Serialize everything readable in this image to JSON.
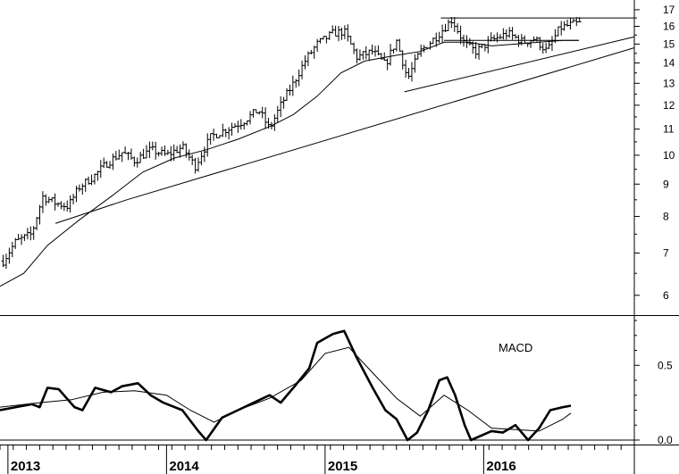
{
  "chart_data": [
    {
      "type": "ohlc",
      "panel": "price",
      "y_scale": "log",
      "ylim": [
        5.6,
        17.5
      ],
      "y_ticks": [
        "6",
        "7",
        "8",
        "9",
        "10",
        "11",
        "12",
        "13",
        "14",
        "15",
        "16",
        "17"
      ],
      "x_range": [
        2012.95,
        2016.95
      ],
      "x_ticks": [
        {
          "x": 2013,
          "label": "2013"
        },
        {
          "x": 2014,
          "label": "2014"
        },
        {
          "x": 2015,
          "label": "2015"
        },
        {
          "x": 2016,
          "label": "2016"
        }
      ],
      "price_path": [
        [
          2012.97,
          6.8
        ],
        [
          2013.05,
          7.3
        ],
        [
          2013.15,
          7.5
        ],
        [
          2013.22,
          8.6
        ],
        [
          2013.3,
          8.4
        ],
        [
          2013.38,
          8.3
        ],
        [
          2013.45,
          8.9
        ],
        [
          2013.55,
          9.3
        ],
        [
          2013.62,
          9.7
        ],
        [
          2013.72,
          10.1
        ],
        [
          2013.8,
          9.8
        ],
        [
          2013.9,
          10.2
        ],
        [
          2014.0,
          10.0
        ],
        [
          2014.1,
          10.3
        ],
        [
          2014.18,
          9.6
        ],
        [
          2014.28,
          10.7
        ],
        [
          2014.38,
          11.0
        ],
        [
          2014.48,
          11.3
        ],
        [
          2014.58,
          11.8
        ],
        [
          2014.65,
          11.0
        ],
        [
          2014.72,
          12.0
        ],
        [
          2014.8,
          13.0
        ],
        [
          2014.88,
          14.2
        ],
        [
          2014.95,
          15.0
        ],
        [
          2015.05,
          15.6
        ],
        [
          2015.12,
          15.7
        ],
        [
          2015.2,
          14.3
        ],
        [
          2015.3,
          14.6
        ],
        [
          2015.38,
          13.9
        ],
        [
          2015.45,
          15.2
        ],
        [
          2015.52,
          13.2
        ],
        [
          2015.6,
          14.6
        ],
        [
          2015.7,
          15.4
        ],
        [
          2015.8,
          16.4
        ],
        [
          2015.88,
          15.0
        ],
        [
          2015.95,
          14.6
        ],
        [
          2016.05,
          15.2
        ],
        [
          2016.15,
          15.6
        ],
        [
          2016.25,
          15.1
        ],
        [
          2016.32,
          15.3
        ],
        [
          2016.4,
          14.6
        ],
        [
          2016.48,
          15.9
        ],
        [
          2016.55,
          16.1
        ],
        [
          2016.62,
          16.2
        ]
      ],
      "moving_average": [
        [
          2012.95,
          6.2
        ],
        [
          2013.1,
          6.5
        ],
        [
          2013.25,
          7.2
        ],
        [
          2013.45,
          7.9
        ],
        [
          2013.65,
          8.6
        ],
        [
          2013.85,
          9.4
        ],
        [
          2014.05,
          9.9
        ],
        [
          2014.25,
          10.2
        ],
        [
          2014.45,
          10.6
        ],
        [
          2014.65,
          11.1
        ],
        [
          2014.8,
          11.6
        ],
        [
          2014.95,
          12.4
        ],
        [
          2015.1,
          13.5
        ],
        [
          2015.25,
          14.1
        ],
        [
          2015.45,
          14.4
        ],
        [
          2015.6,
          14.6
        ],
        [
          2015.75,
          15.1
        ],
        [
          2015.9,
          15.1
        ],
        [
          2016.05,
          14.9
        ],
        [
          2016.2,
          15.0
        ],
        [
          2016.35,
          15.1
        ],
        [
          2016.5,
          15.2
        ],
        [
          2016.6,
          15.2
        ]
      ],
      "trendlines": [
        {
          "from": [
            2013.3,
            7.8
          ],
          "to": [
            2013.75,
            8.5
          ]
        },
        {
          "from": [
            2013.75,
            8.5
          ],
          "to": [
            2016.95,
            14.8
          ]
        },
        {
          "from": [
            2015.5,
            12.6
          ],
          "to": [
            2016.95,
            15.4
          ]
        },
        {
          "from": [
            2015.73,
            16.5
          ],
          "to": [
            2016.95,
            16.5
          ]
        },
        {
          "from": [
            2015.75,
            15.2
          ],
          "to": [
            2016.6,
            15.2
          ]
        }
      ]
    },
    {
      "type": "line",
      "panel": "indicator",
      "title": "MACD",
      "ylim": [
        -0.03,
        0.83
      ],
      "y_ticks": [
        {
          "y": 0.0,
          "label": "0.0"
        },
        {
          "y": 0.5,
          "label": "0.5"
        }
      ],
      "zero_line": 0,
      "series": [
        {
          "values": [
            [
              2012.95,
              0.2
            ],
            [
              2013.05,
              0.22
            ],
            [
              2013.15,
              0.24
            ],
            [
              2013.2,
              0.22
            ],
            [
              2013.25,
              0.35
            ],
            [
              2013.32,
              0.34
            ],
            [
              2013.42,
              0.22
            ],
            [
              2013.47,
              0.2
            ],
            [
              2013.55,
              0.35
            ],
            [
              2013.65,
              0.32
            ],
            [
              2013.72,
              0.36
            ],
            [
              2013.82,
              0.38
            ],
            [
              2013.9,
              0.3
            ],
            [
              2013.98,
              0.25
            ],
            [
              2014.1,
              0.2
            ],
            [
              2014.2,
              0.06
            ],
            [
              2014.25,
              0.0
            ],
            [
              2014.35,
              0.15
            ],
            [
              2014.45,
              0.2
            ],
            [
              2014.55,
              0.25
            ],
            [
              2014.65,
              0.3
            ],
            [
              2014.72,
              0.25
            ],
            [
              2014.8,
              0.35
            ],
            [
              2014.9,
              0.48
            ],
            [
              2014.95,
              0.65
            ],
            [
              2015.05,
              0.71
            ],
            [
              2015.12,
              0.73
            ],
            [
              2015.2,
              0.55
            ],
            [
              2015.3,
              0.35
            ],
            [
              2015.38,
              0.2
            ],
            [
              2015.45,
              0.14
            ],
            [
              2015.52,
              0.0
            ],
            [
              2015.58,
              0.05
            ],
            [
              2015.65,
              0.2
            ],
            [
              2015.72,
              0.4
            ],
            [
              2015.77,
              0.42
            ],
            [
              2015.82,
              0.3
            ],
            [
              2015.88,
              0.1
            ],
            [
              2015.92,
              0.0
            ],
            [
              2016.05,
              0.06
            ],
            [
              2016.12,
              0.05
            ],
            [
              2016.2,
              0.1
            ],
            [
              2016.28,
              0.0
            ],
            [
              2016.35,
              0.08
            ],
            [
              2016.42,
              0.2
            ],
            [
              2016.5,
              0.22
            ],
            [
              2016.55,
              0.23
            ]
          ]
        },
        {
          "values": [
            [
              2012.95,
              0.22
            ],
            [
              2013.2,
              0.25
            ],
            [
              2013.4,
              0.27
            ],
            [
              2013.6,
              0.32
            ],
            [
              2013.8,
              0.33
            ],
            [
              2014.0,
              0.3
            ],
            [
              2014.15,
              0.2
            ],
            [
              2014.3,
              0.12
            ],
            [
              2014.45,
              0.2
            ],
            [
              2014.65,
              0.28
            ],
            [
              2014.85,
              0.4
            ],
            [
              2015.0,
              0.58
            ],
            [
              2015.15,
              0.62
            ],
            [
              2015.3,
              0.45
            ],
            [
              2015.45,
              0.28
            ],
            [
              2015.6,
              0.16
            ],
            [
              2015.75,
              0.3
            ],
            [
              2015.9,
              0.2
            ],
            [
              2016.05,
              0.08
            ],
            [
              2016.2,
              0.07
            ],
            [
              2016.35,
              0.06
            ],
            [
              2016.5,
              0.14
            ],
            [
              2016.55,
              0.18
            ]
          ]
        }
      ]
    }
  ]
}
